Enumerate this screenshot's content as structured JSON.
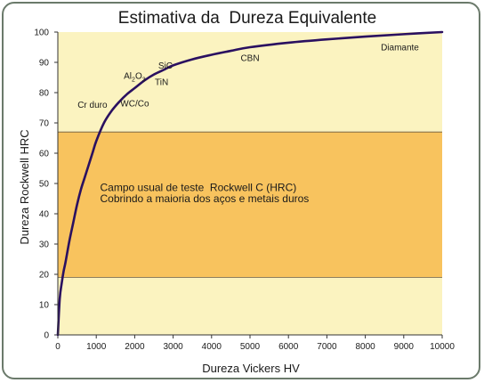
{
  "chart_data": {
    "type": "line",
    "title": "Estimativa da  Dureza Equivalente",
    "xlabel": "Dureza Vickers HV",
    "ylabel": "Dureza Rockwell HRC",
    "xlim": [
      0,
      10000
    ],
    "ylim": [
      0,
      100
    ],
    "x_ticks": [
      0,
      1000,
      2000,
      3000,
      4000,
      5000,
      6000,
      7000,
      8000,
      9000,
      10000
    ],
    "y_ticks": [
      0,
      10,
      20,
      30,
      40,
      50,
      60,
      70,
      80,
      90,
      100
    ],
    "grid": false,
    "background_color": "#fbf3c0",
    "band": {
      "y_range": [
        19,
        67
      ],
      "color": "#f8c35e",
      "text_lines": [
        "Campo usual de teste  Rockwell C (HRC)",
        "Cobrindo a maioria dos aços e metais duros"
      ]
    },
    "series": [
      {
        "color": "#2a1060",
        "x": [
          0,
          50,
          100,
          150,
          200,
          300,
          400,
          500,
          600,
          700,
          800,
          900,
          1000,
          1200,
          1400,
          1600,
          1800,
          2000,
          2250,
          2500,
          2750,
          3000,
          3500,
          4000,
          4500,
          5000,
          6000,
          7000,
          8000,
          9000,
          10000
        ],
        "y": [
          0,
          12,
          17,
          21,
          24,
          31,
          37,
          43,
          48,
          52,
          56,
          60,
          64,
          70,
          74,
          77,
          79.5,
          81.5,
          84,
          86,
          87.5,
          89,
          91,
          92.5,
          93.8,
          95,
          96.5,
          97.6,
          98.5,
          99.3,
          100
        ]
      }
    ],
    "annotations": [
      {
        "text": "Cr duro",
        "x": 900,
        "y": 75
      },
      {
        "text": "WC/Co",
        "x": 2000,
        "y": 75.5
      },
      {
        "text": "Al",
        "sub": "2",
        "text2": "O",
        "sub2": "3",
        "x": 2000,
        "y": 84.5
      },
      {
        "text": "SiC",
        "x": 2800,
        "y": 88
      },
      {
        "text": "TiN",
        "x": 2700,
        "y": 82.5
      },
      {
        "text": "CBN",
        "x": 5000,
        "y": 90.5
      },
      {
        "text": "Diamante",
        "x": 8900,
        "y": 94
      }
    ]
  }
}
